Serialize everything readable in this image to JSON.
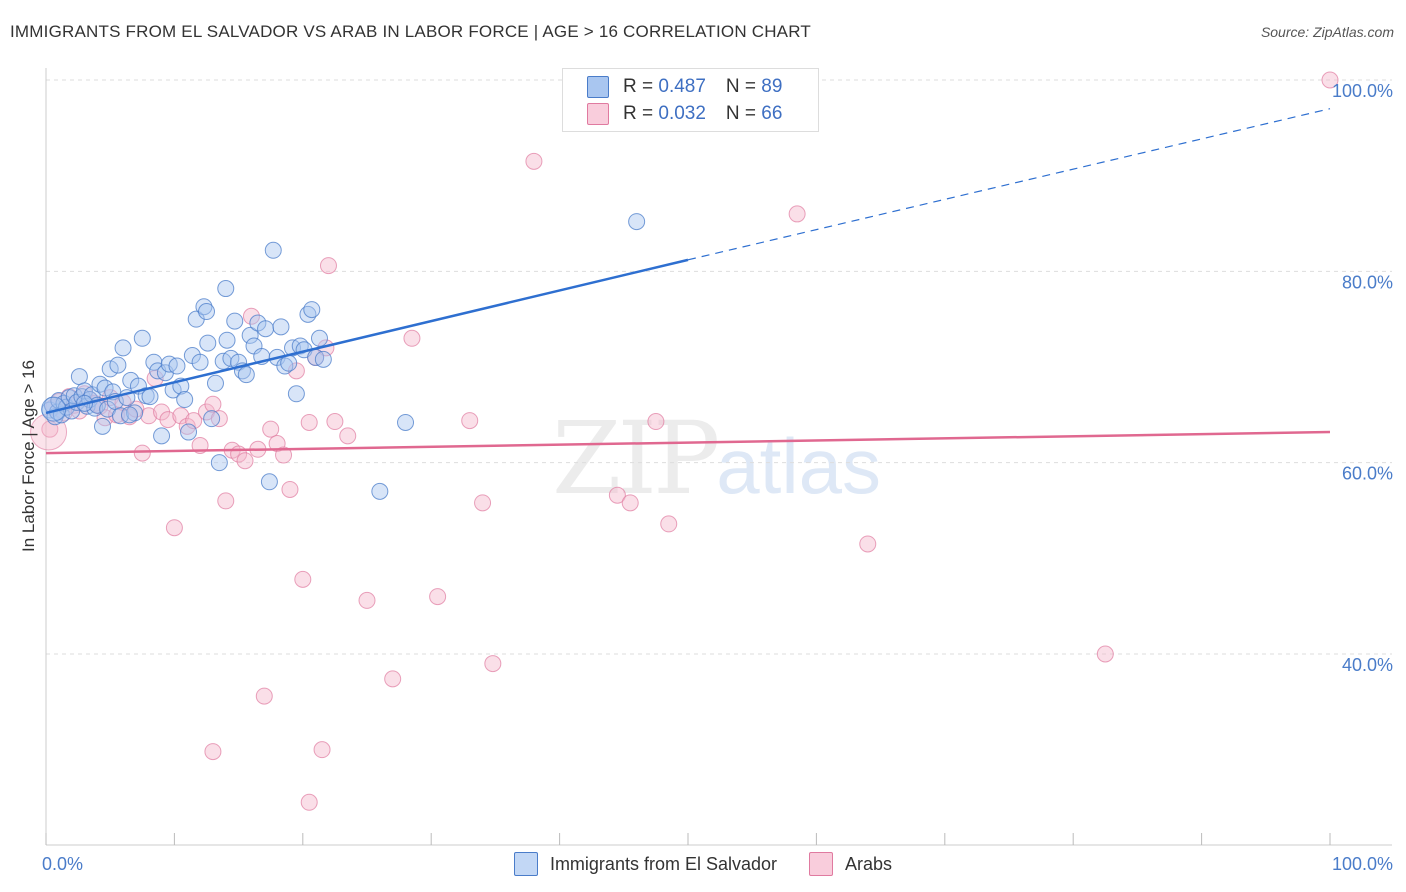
{
  "title": "IMMIGRANTS FROM EL SALVADOR VS ARAB IN LABOR FORCE | AGE > 16 CORRELATION CHART",
  "source": "Source: ZipAtlas.com",
  "watermark": {
    "zip": "ZIP",
    "atlas": "atlas"
  },
  "colors": {
    "blue_fill": "#a9c6f0",
    "blue_stroke": "#4a7cc9",
    "blue_line": "#2e6fd0",
    "pink_fill": "#f5b8cc",
    "pink_stroke": "#e07aa0",
    "pink_line": "#e06890",
    "grid": "#dddddd",
    "tick_text": "#4a7cc9"
  },
  "legend": {
    "rows": [
      {
        "r_label": "R = ",
        "r_value": "0.487",
        "n_label": "N = ",
        "n_value": "89"
      },
      {
        "r_label": "R = ",
        "r_value": "0.032",
        "n_label": "N = ",
        "n_value": "66"
      }
    ]
  },
  "chart_data": {
    "type": "scatter",
    "title": "IMMIGRANTS FROM EL SALVADOR VS ARAB IN LABOR FORCE | AGE > 16 CORRELATION CHART",
    "xlabel": "",
    "ylabel": "In Labor Force | Age > 16",
    "xlim": [
      0,
      100
    ],
    "ylim": [
      20,
      102
    ],
    "x_tick_labels": [
      "0.0%",
      "100.0%"
    ],
    "y_ticks": [
      40,
      60,
      80,
      100
    ],
    "y_tick_labels": [
      "40.0%",
      "60.0%",
      "80.0%",
      "100.0%"
    ],
    "grid": true,
    "legend_position": "top-center",
    "series": [
      {
        "name": "Immigrants from El Salvador",
        "color": "#a9c6f0",
        "trend": {
          "x0": 0,
          "y0": 65.2,
          "x1": 50,
          "y1": 81.2,
          "dashed_to_x": 100,
          "dashed_to_y": 97.0
        },
        "points": [
          [
            0.3,
            65.5
          ],
          [
            0.5,
            66.0
          ],
          [
            0.7,
            64.8
          ],
          [
            0.9,
            65.3
          ],
          [
            1.0,
            66.5
          ],
          [
            1.2,
            65.0
          ],
          [
            1.4,
            66.2
          ],
          [
            1.6,
            65.8
          ],
          [
            1.8,
            66.8
          ],
          [
            2.0,
            65.4
          ],
          [
            2.2,
            67.0
          ],
          [
            2.4,
            66.3
          ],
          [
            2.6,
            69.0
          ],
          [
            2.8,
            66.9
          ],
          [
            3.0,
            67.5
          ],
          [
            3.2,
            65.9
          ],
          [
            3.4,
            66.6
          ],
          [
            3.6,
            67.1
          ],
          [
            3.8,
            65.7
          ],
          [
            4.0,
            66.0
          ],
          [
            4.2,
            68.2
          ],
          [
            4.4,
            63.8
          ],
          [
            4.6,
            67.8
          ],
          [
            4.8,
            65.6
          ],
          [
            5.0,
            69.8
          ],
          [
            5.2,
            67.4
          ],
          [
            5.4,
            66.4
          ],
          [
            5.6,
            70.2
          ],
          [
            5.8,
            64.9
          ],
          [
            6.0,
            72.0
          ],
          [
            6.3,
            66.8
          ],
          [
            6.6,
            68.6
          ],
          [
            6.9,
            65.2
          ],
          [
            7.2,
            68.0
          ],
          [
            7.5,
            73.0
          ],
          [
            7.8,
            67.0
          ],
          [
            8.1,
            66.9
          ],
          [
            8.4,
            70.5
          ],
          [
            8.7,
            69.6
          ],
          [
            9.0,
            62.8
          ],
          [
            9.3,
            69.4
          ],
          [
            9.6,
            70.3
          ],
          [
            9.9,
            67.6
          ],
          [
            10.2,
            70.1
          ],
          [
            10.5,
            68.0
          ],
          [
            10.8,
            66.6
          ],
          [
            11.1,
            63.2
          ],
          [
            11.4,
            71.2
          ],
          [
            11.7,
            75.0
          ],
          [
            12.0,
            70.5
          ],
          [
            12.3,
            76.3
          ],
          [
            12.6,
            72.5
          ],
          [
            12.9,
            64.6
          ],
          [
            13.2,
            68.3
          ],
          [
            13.5,
            60.0
          ],
          [
            13.8,
            70.6
          ],
          [
            14.1,
            72.8
          ],
          [
            14.4,
            70.9
          ],
          [
            14.7,
            74.8
          ],
          [
            15.0,
            70.5
          ],
          [
            15.3,
            69.6
          ],
          [
            15.6,
            69.2
          ],
          [
            15.9,
            73.3
          ],
          [
            16.2,
            72.2
          ],
          [
            16.5,
            74.6
          ],
          [
            16.8,
            71.1
          ],
          [
            17.1,
            74.0
          ],
          [
            17.4,
            58.0
          ],
          [
            17.7,
            82.2
          ],
          [
            18.0,
            71.0
          ],
          [
            18.3,
            74.2
          ],
          [
            18.6,
            70.1
          ],
          [
            18.9,
            70.4
          ],
          [
            19.2,
            72.0
          ],
          [
            19.5,
            67.2
          ],
          [
            19.8,
            72.2
          ],
          [
            20.1,
            71.8
          ],
          [
            20.4,
            75.5
          ],
          [
            20.7,
            76.0
          ],
          [
            21.0,
            71.0
          ],
          [
            21.3,
            73.0
          ],
          [
            21.6,
            70.8
          ],
          [
            14.0,
            78.2
          ],
          [
            46.0,
            85.2
          ],
          [
            26.0,
            57.0
          ],
          [
            28.0,
            64.2
          ],
          [
            12.5,
            75.8
          ],
          [
            6.5,
            65.0
          ],
          [
            3.0,
            66.2
          ]
        ]
      },
      {
        "name": "Arabs",
        "color": "#f5b8cc",
        "trend": {
          "x0": 0,
          "y0": 61.0,
          "x1": 100,
          "y1": 63.2
        },
        "points": [
          [
            0.3,
            63.5
          ],
          [
            0.6,
            65.8
          ],
          [
            1.0,
            66.4
          ],
          [
            1.4,
            65.2
          ],
          [
            1.8,
            66.9
          ],
          [
            2.2,
            66.0
          ],
          [
            2.6,
            65.4
          ],
          [
            3.0,
            67.2
          ],
          [
            3.4,
            66.6
          ],
          [
            3.8,
            66.2
          ],
          [
            4.2,
            65.9
          ],
          [
            4.6,
            64.7
          ],
          [
            5.0,
            66.8
          ],
          [
            5.5,
            65.0
          ],
          [
            6.0,
            66.3
          ],
          [
            6.5,
            64.8
          ],
          [
            7.0,
            65.6
          ],
          [
            7.5,
            61.0
          ],
          [
            8.0,
            64.9
          ],
          [
            8.5,
            68.8
          ],
          [
            9.0,
            65.3
          ],
          [
            9.5,
            64.5
          ],
          [
            10.0,
            53.2
          ],
          [
            10.5,
            64.9
          ],
          [
            11.0,
            63.8
          ],
          [
            11.5,
            64.4
          ],
          [
            12.0,
            61.8
          ],
          [
            12.5,
            65.3
          ],
          [
            13.0,
            66.1
          ],
          [
            13.5,
            64.6
          ],
          [
            14.0,
            56.0
          ],
          [
            14.5,
            61.3
          ],
          [
            15.0,
            60.9
          ],
          [
            15.5,
            60.2
          ],
          [
            16.0,
            75.3
          ],
          [
            16.5,
            61.4
          ],
          [
            17.0,
            35.6
          ],
          [
            17.5,
            63.5
          ],
          [
            18.0,
            62.0
          ],
          [
            18.5,
            60.8
          ],
          [
            19.0,
            57.2
          ],
          [
            19.5,
            69.6
          ],
          [
            20.0,
            47.8
          ],
          [
            20.5,
            64.2
          ],
          [
            21.0,
            71.0
          ],
          [
            21.8,
            72.0
          ],
          [
            22.0,
            80.6
          ],
          [
            22.5,
            64.3
          ],
          [
            23.5,
            62.8
          ],
          [
            25.0,
            45.6
          ],
          [
            27.0,
            37.4
          ],
          [
            28.5,
            73.0
          ],
          [
            30.5,
            46.0
          ],
          [
            33.0,
            64.4
          ],
          [
            34.0,
            55.8
          ],
          [
            34.8,
            39.0
          ],
          [
            38.0,
            91.5
          ],
          [
            44.5,
            56.6
          ],
          [
            45.5,
            55.8
          ],
          [
            47.5,
            64.3
          ],
          [
            48.5,
            53.6
          ],
          [
            58.5,
            86.0
          ],
          [
            64.0,
            51.5
          ],
          [
            82.5,
            40.0
          ],
          [
            100.0,
            100.0
          ],
          [
            20.5,
            24.5
          ]
        ]
      }
    ],
    "extra_pink": [
      [
        13.0,
        29.8
      ],
      [
        21.5,
        30.0
      ]
    ]
  }
}
